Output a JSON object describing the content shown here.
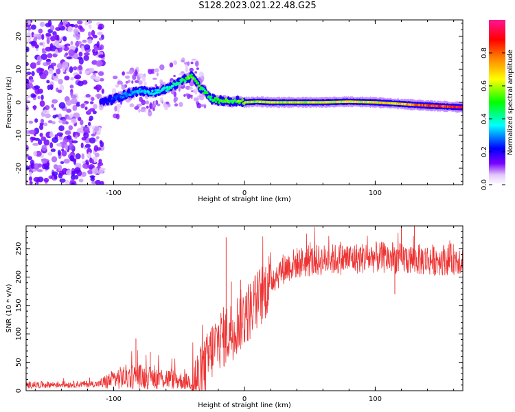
{
  "title": "S128.2023.021.22.48.G25",
  "chart_data": [
    {
      "type": "heatmap",
      "title": "S128.2023.021.22.48.G25",
      "xlabel": "Height of straight line (km)",
      "ylabel": "Frequency (Hz)",
      "xlim": [
        -167,
        167
      ],
      "ylim": [
        -25,
        25
      ],
      "xticks": [
        -100,
        0,
        100
      ],
      "yticks": [
        -20,
        -10,
        0,
        10,
        20
      ],
      "colorbar": {
        "label": "Normalized spectral amplitude",
        "range": [
          0.0,
          1.0
        ],
        "ticks": [
          0.0,
          0.2,
          0.4,
          0.6,
          0.8
        ],
        "colors": [
          "#ffffff",
          "#e2c6fb",
          "#7a00ff",
          "#0000ff",
          "#00ffff",
          "#00ff00",
          "#ffff00",
          "#ff8000",
          "#ff0000",
          "#ff1493"
        ]
      },
      "ridge": {
        "x": [
          -110,
          -100,
          -90,
          -80,
          -70,
          -60,
          -50,
          -45,
          -40,
          -35,
          -30,
          -25,
          -20,
          -15,
          -10,
          -5,
          0,
          10,
          20,
          40,
          60,
          80,
          100,
          120,
          140,
          167
        ],
        "y": [
          0,
          1,
          2.5,
          3.5,
          3,
          4,
          6,
          7,
          8,
          5,
          3,
          1,
          0.5,
          0.5,
          0,
          0.5,
          0,
          0.2,
          0,
          0,
          0,
          0.2,
          0,
          -0.5,
          -1,
          -1.5
        ],
        "amplitude": [
          0.2,
          0.25,
          0.3,
          0.32,
          0.35,
          0.4,
          0.45,
          0.5,
          0.55,
          0.5,
          0.45,
          0.45,
          0.5,
          0.55,
          0.5,
          0.55,
          0.6,
          0.6,
          0.62,
          0.62,
          0.64,
          0.65,
          0.66,
          0.7,
          0.85,
          0.9
        ]
      },
      "noise_region_x": [
        -167,
        -108
      ]
    },
    {
      "type": "line",
      "xlabel": "Height of straight line (km)",
      "ylabel": "SNR (10 * v/v)",
      "xlim": [
        -167,
        167
      ],
      "ylim": [
        0,
        290
      ],
      "xticks": [
        -100,
        0,
        100
      ],
      "yticks": [
        0,
        50,
        100,
        150,
        200,
        250
      ],
      "color": "#ee3333",
      "trend": {
        "x": [
          -167,
          -110,
          -100,
          -90,
          -80,
          -70,
          -60,
          -50,
          -40,
          -35,
          -30,
          -25,
          -20,
          -15,
          -10,
          -5,
          0,
          5,
          10,
          15,
          20,
          30,
          40,
          60,
          80,
          100,
          120,
          140,
          167
        ],
        "y": [
          10,
          12,
          20,
          25,
          25,
          22,
          22,
          18,
          15,
          20,
          40,
          70,
          90,
          95,
          105,
          120,
          130,
          145,
          160,
          175,
          195,
          215,
          225,
          230,
          232,
          235,
          232,
          230,
          232
        ]
      },
      "spikes": [
        {
          "x": -83,
          "y": 92
        },
        {
          "x": -72,
          "y": 68
        },
        {
          "x": -14,
          "y": 270
        },
        {
          "x": -10,
          "y": 192
        },
        {
          "x": -3,
          "y": 195
        },
        {
          "x": 115,
          "y": 170
        },
        {
          "x": 120,
          "y": 290
        },
        {
          "x": 130,
          "y": 290
        }
      ]
    }
  ]
}
